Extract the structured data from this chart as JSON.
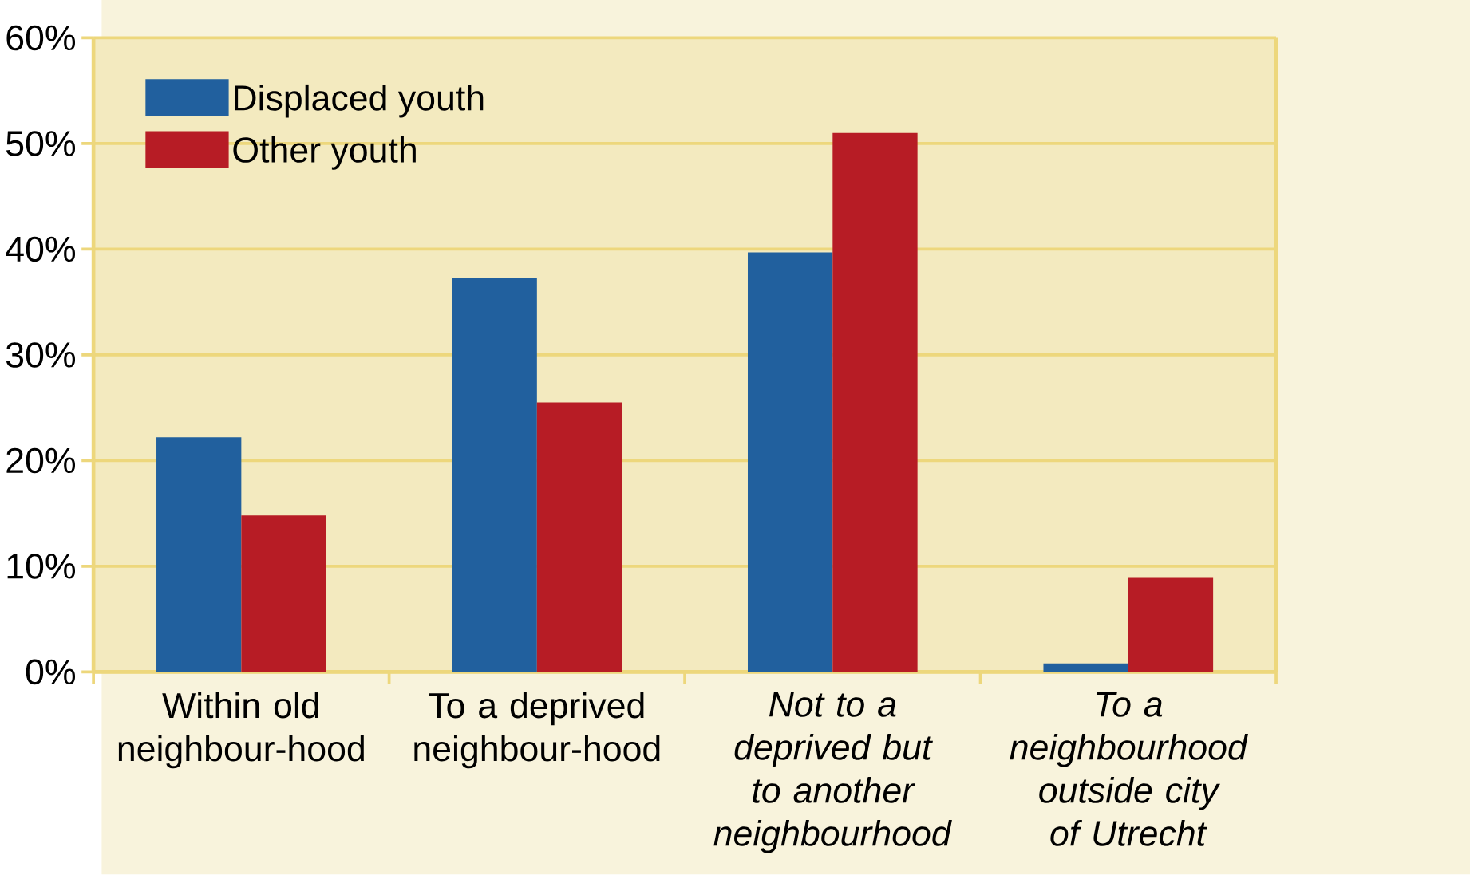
{
  "chart_data": {
    "type": "bar",
    "categories": [
      "Within old neighbour-hood",
      "To a deprived neighbour-hood",
      "*Not to a deprived but to another neighbourhood*",
      "*To a neighbourhood outside city of Utrecht*"
    ],
    "series": [
      {
        "name": "Displaced youth",
        "color": "#21609e",
        "values": [
          22.2,
          37.3,
          39.7,
          0.8
        ]
      },
      {
        "name": "Other youth",
        "color": "#b71c25",
        "values": [
          14.8,
          25.5,
          51.0,
          8.9
        ]
      }
    ],
    "ylim": [
      0,
      60
    ],
    "yticks": [
      {
        "value": 0,
        "label": "0%"
      },
      {
        "value": 10,
        "label": "10%"
      },
      {
        "value": 20,
        "label": "20%"
      },
      {
        "value": 30,
        "label": "30%"
      },
      {
        "value": 40,
        "label": "40%"
      },
      {
        "value": 50,
        "label": "50%"
      },
      {
        "value": 60,
        "label": "60%"
      }
    ],
    "grid": "y",
    "legend": "top left"
  }
}
